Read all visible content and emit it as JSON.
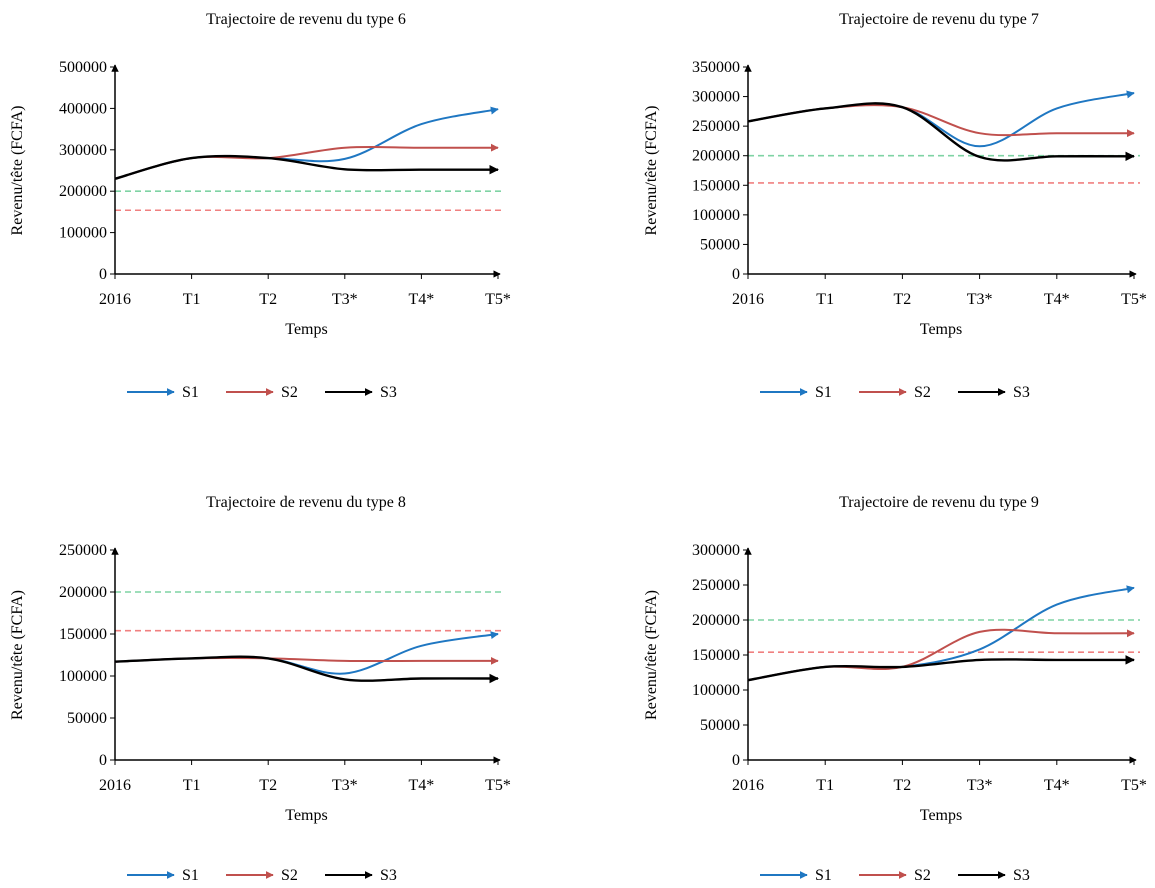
{
  "chart_data": [
    {
      "type": "line",
      "title": "Trajectoire de revenu du type 6",
      "xlabel": "Temps",
      "ylabel": "Revenu/tête (FCFA)",
      "categories": [
        "2016",
        "T1",
        "T2",
        "T3*",
        "T4*",
        "T5*"
      ],
      "ylim": [
        0,
        500000
      ],
      "yticks": [
        0,
        100000,
        200000,
        300000,
        400000,
        500000
      ],
      "series": [
        {
          "name": "S1",
          "values": [
            230000,
            280000,
            280000,
            278000,
            362000,
            398000
          ]
        },
        {
          "name": "S2",
          "values": [
            230000,
            280000,
            280000,
            305000,
            305000,
            305000
          ]
        },
        {
          "name": "S3",
          "values": [
            230000,
            280000,
            280000,
            253000,
            252000,
            252000
          ]
        }
      ],
      "reference_lines": [
        200000,
        154000
      ],
      "legend": "bottom"
    },
    {
      "type": "line",
      "title": "Trajectoire de revenu du type 7",
      "xlabel": "Temps",
      "ylabel": "Revenu/tête (FCFA)",
      "categories": [
        "2016",
        "T1",
        "T2",
        "T3*",
        "T4*",
        "T5*"
      ],
      "ylim": [
        0,
        350000
      ],
      "yticks": [
        0,
        50000,
        100000,
        150000,
        200000,
        250000,
        300000,
        350000
      ],
      "series": [
        {
          "name": "S1",
          "values": [
            258000,
            280000,
            282000,
            216000,
            280000,
            306000
          ]
        },
        {
          "name": "S2",
          "values": [
            258000,
            280000,
            282000,
            238000,
            238000,
            238000
          ]
        },
        {
          "name": "S3",
          "values": [
            258000,
            280000,
            282000,
            198000,
            199000,
            199000
          ]
        }
      ],
      "reference_lines": [
        200000,
        154000
      ],
      "legend": "bottom"
    },
    {
      "type": "line",
      "title": "Trajectoire de revenu du type 8",
      "xlabel": "Temps",
      "ylabel": "Revenu/tête (FCFA)",
      "categories": [
        "2016",
        "T1",
        "T2",
        "T3*",
        "T4*",
        "T5*"
      ],
      "ylim": [
        0,
        250000
      ],
      "yticks": [
        0,
        50000,
        100000,
        150000,
        200000,
        250000
      ],
      "series": [
        {
          "name": "S1",
          "values": [
            117000,
            121000,
            121000,
            103000,
            136000,
            150000
          ]
        },
        {
          "name": "S2",
          "values": [
            117000,
            121000,
            121000,
            118000,
            118000,
            118000
          ]
        },
        {
          "name": "S3",
          "values": [
            117000,
            121000,
            121000,
            96000,
            97000,
            97000
          ]
        }
      ],
      "reference_lines": [
        200000,
        154000
      ],
      "legend": "bottom"
    },
    {
      "type": "line",
      "title": "Trajectoire de revenu du type 9",
      "xlabel": "Temps",
      "ylabel": "Revenu/tête (FCFA)",
      "categories": [
        "2016",
        "T1",
        "T2",
        "T3*",
        "T4*",
        "T5*"
      ],
      "ylim": [
        0,
        300000
      ],
      "yticks": [
        0,
        50000,
        100000,
        150000,
        200000,
        250000,
        300000
      ],
      "series": [
        {
          "name": "S1",
          "values": [
            114000,
            133000,
            133000,
            158000,
            222000,
            246000
          ]
        },
        {
          "name": "S2",
          "values": [
            114000,
            133000,
            133000,
            183000,
            181000,
            181000
          ]
        },
        {
          "name": "S3",
          "values": [
            114000,
            133000,
            133000,
            143000,
            143000,
            143000
          ]
        }
      ],
      "reference_lines": [
        200000,
        154000
      ],
      "legend": "bottom"
    }
  ],
  "colors": {
    "S1": "#1f77c2",
    "S2": "#c0504d",
    "S3": "#000000",
    "ref_green": "#7fd3a4",
    "ref_red": "#f08080"
  }
}
